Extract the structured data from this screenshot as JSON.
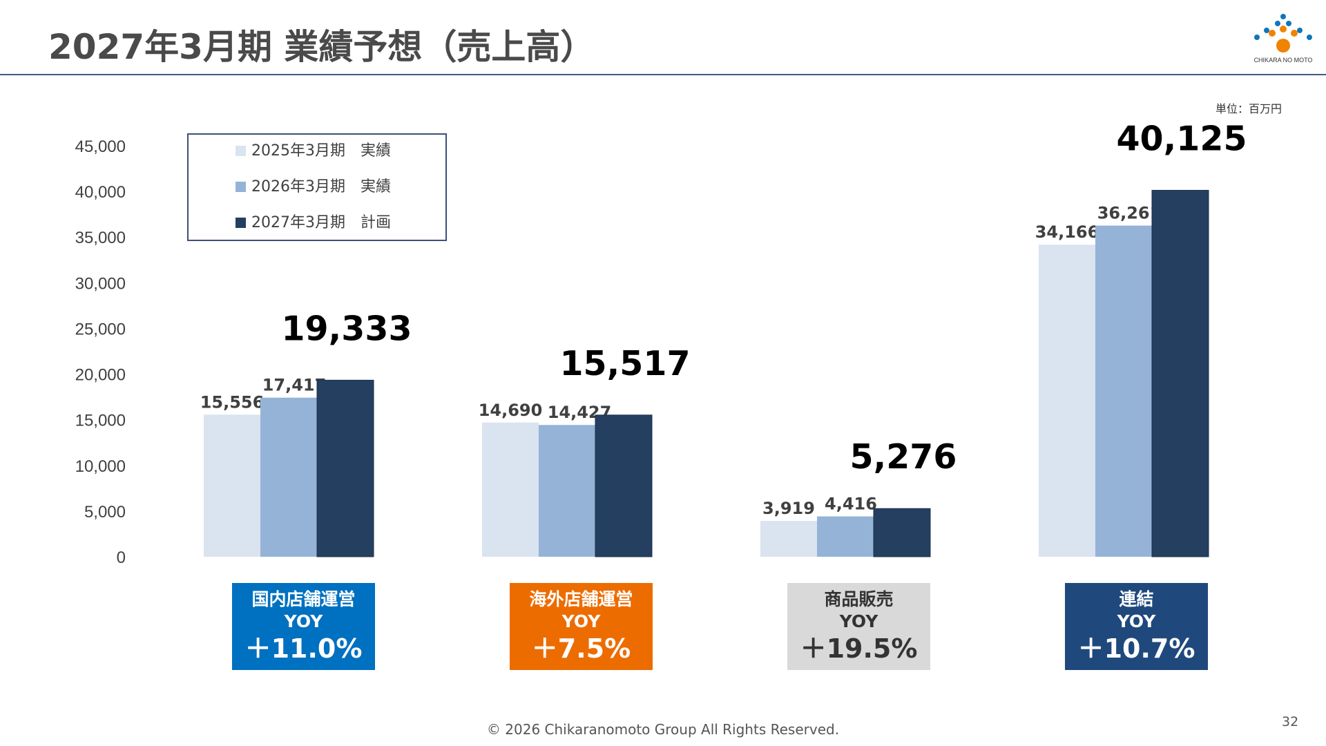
{
  "page": {
    "title": "2027年3月期 業績予想（売上高）",
    "unit": "単位：百万円",
    "logo_text": "CHIKARA NO MOTO",
    "footer": "© 2026 Chikaranomoto Group All Rights Reserved.",
    "page_number": "32"
  },
  "chart_data": {
    "type": "bar",
    "categories": [
      "国内店舗運営",
      "海外店舗運営",
      "商品販売",
      "連結"
    ],
    "series": [
      {
        "name": "2025年3月期　実績",
        "color": "#dae3f0",
        "values": [
          15556,
          14690,
          3919,
          34166
        ],
        "labels": [
          "15,556",
          "14,690",
          "3,919",
          "34,166"
        ]
      },
      {
        "name": "2026年3月期　実績",
        "color": "#95b3d7",
        "values": [
          17417,
          14427,
          4416,
          36261
        ],
        "labels": [
          "17,417",
          "14,427",
          "4,416",
          "36,261"
        ]
      },
      {
        "name": "2027年3月期　計画",
        "color": "#243f60",
        "values": [
          19333,
          15517,
          5276,
          40125
        ],
        "labels": [
          "19,333",
          "15,517",
          "5,276",
          "40,125"
        ]
      }
    ],
    "ylim": [
      0,
      45000
    ],
    "y_ticks": [
      0,
      5000,
      10000,
      15000,
      20000,
      25000,
      30000,
      35000,
      40000,
      45000
    ],
    "y_tick_labels": [
      "0",
      "5,000",
      "10,000",
      "15,000",
      "20,000",
      "25,000",
      "30,000",
      "35,000",
      "40,000",
      "45,000"
    ],
    "grid": false,
    "legend_position": "top-left",
    "xlabel": "",
    "ylabel": ""
  },
  "yoy": [
    {
      "segment": "国内店舗運営",
      "label": "YOY",
      "value": "＋11.0%",
      "bg": "#0070c0",
      "fg": "#ffffff"
    },
    {
      "segment": "海外店舗運営",
      "label": "YOY",
      "value": "＋7.5%",
      "bg": "#ed6c00",
      "fg": "#ffffff"
    },
    {
      "segment": "商品販売",
      "label": "YOY",
      "value": "＋19.5%",
      "bg": "#d9d9d9",
      "fg": "#333333"
    },
    {
      "segment": "連結",
      "label": "YOY",
      "value": "＋10.7%",
      "bg": "#1f497d",
      "fg": "#ffffff"
    }
  ]
}
